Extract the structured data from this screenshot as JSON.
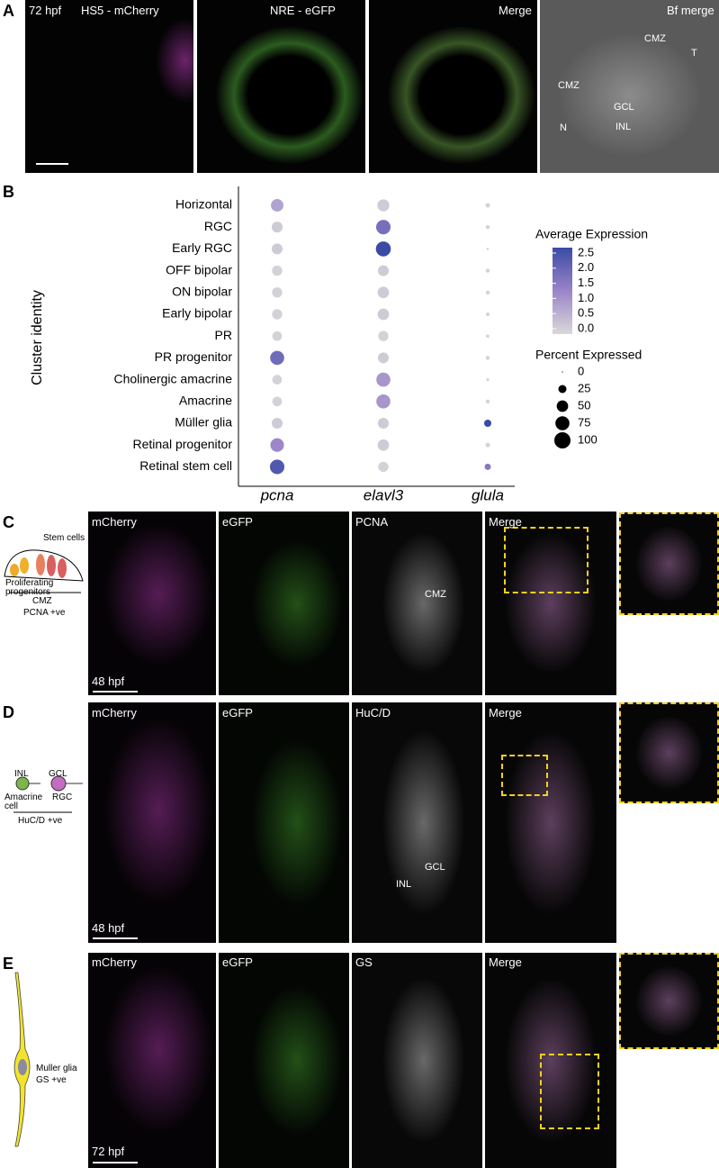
{
  "panels": {
    "A": {
      "label": "A",
      "image_labels": [
        "72 hpf",
        "HS5 - mCherry",
        "NRE - eGFP",
        "Merge",
        "Bf merge"
      ],
      "annotations": [
        "CMZ",
        "CMZ",
        "T",
        "GCL",
        "INL",
        "N"
      ]
    },
    "B": {
      "label": "B"
    },
    "C": {
      "label": "C",
      "schematic": [
        "Stem cells",
        "Proliferating progenitors",
        "CMZ",
        "PCNA +ve"
      ],
      "image_labels": [
        "mCherry",
        "eGFP",
        "PCNA",
        "Merge"
      ],
      "stage": "48 hpf",
      "annotations": [
        "CMZ"
      ]
    },
    "D": {
      "label": "D",
      "schematic": [
        "INL",
        "GCL",
        "Amacrine cell",
        "RGC",
        "HuC/D +ve"
      ],
      "image_labels": [
        "mCherry",
        "eGFP",
        "HuC/D",
        "Merge"
      ],
      "stage": "48 hpf",
      "annotations": [
        "GCL",
        "INL"
      ]
    },
    "E": {
      "label": "E",
      "schematic": [
        "Muller glia",
        "GS +ve"
      ],
      "image_labels": [
        "mCherry",
        "eGFP",
        "GS",
        "Merge"
      ],
      "stage": "72 hpf"
    }
  },
  "chart_data": {
    "type": "dot",
    "y_label": "Cluster identity",
    "categories": [
      "Horizontal",
      "RGC",
      "Early RGC",
      "OFF bipolar",
      "ON bipolar",
      "Early bipolar",
      "PR",
      "PR progenitor",
      "Cholinergic amacrine",
      "Amacrine",
      "Müller glia",
      "Retinal progenitor",
      "Retinal stem cell"
    ],
    "series": [
      {
        "name": "pcna",
        "values": [
          0.8,
          0.2,
          0.2,
          0.1,
          0.1,
          0.1,
          0.1,
          1.8,
          0.1,
          0.1,
          0.2,
          1.2,
          2.2
        ],
        "sizes": [
          60,
          45,
          45,
          40,
          40,
          40,
          35,
          75,
          35,
          35,
          45,
          70,
          80
        ]
      },
      {
        "name": "elavl3",
        "values": [
          0.2,
          1.7,
          2.5,
          0.2,
          0.2,
          0.2,
          0.1,
          0.2,
          1.0,
          1.0,
          0.2,
          0.2,
          0.1
        ],
        "sizes": [
          55,
          80,
          85,
          45,
          50,
          50,
          40,
          45,
          75,
          75,
          45,
          50,
          40
        ]
      },
      {
        "name": "glula",
        "values": [
          0.1,
          0.1,
          0.1,
          0.1,
          0.1,
          0.1,
          0.1,
          0.1,
          0.1,
          0.1,
          2.5,
          0.1,
          1.5
        ],
        "sizes": [
          8,
          6,
          2,
          6,
          6,
          5,
          4,
          6,
          3,
          6,
          20,
          8,
          15
        ]
      }
    ],
    "color_title": "Average Expression",
    "color_lim": [
      0,
      2.5
    ],
    "color_scale": [
      "#d9d9d9",
      "#9b84c9",
      "#3a4ba5"
    ],
    "color_ticks": [
      {
        "value": 0,
        "label": "0.0"
      },
      0.5,
      {
        "value": 1,
        "label": "1.0"
      },
      1.5,
      {
        "value": 2,
        "label": "2.0"
      },
      2.5
    ],
    "size_title": "Percent Expressed",
    "size_ticks": [
      0,
      25,
      50,
      75,
      100
    ]
  }
}
